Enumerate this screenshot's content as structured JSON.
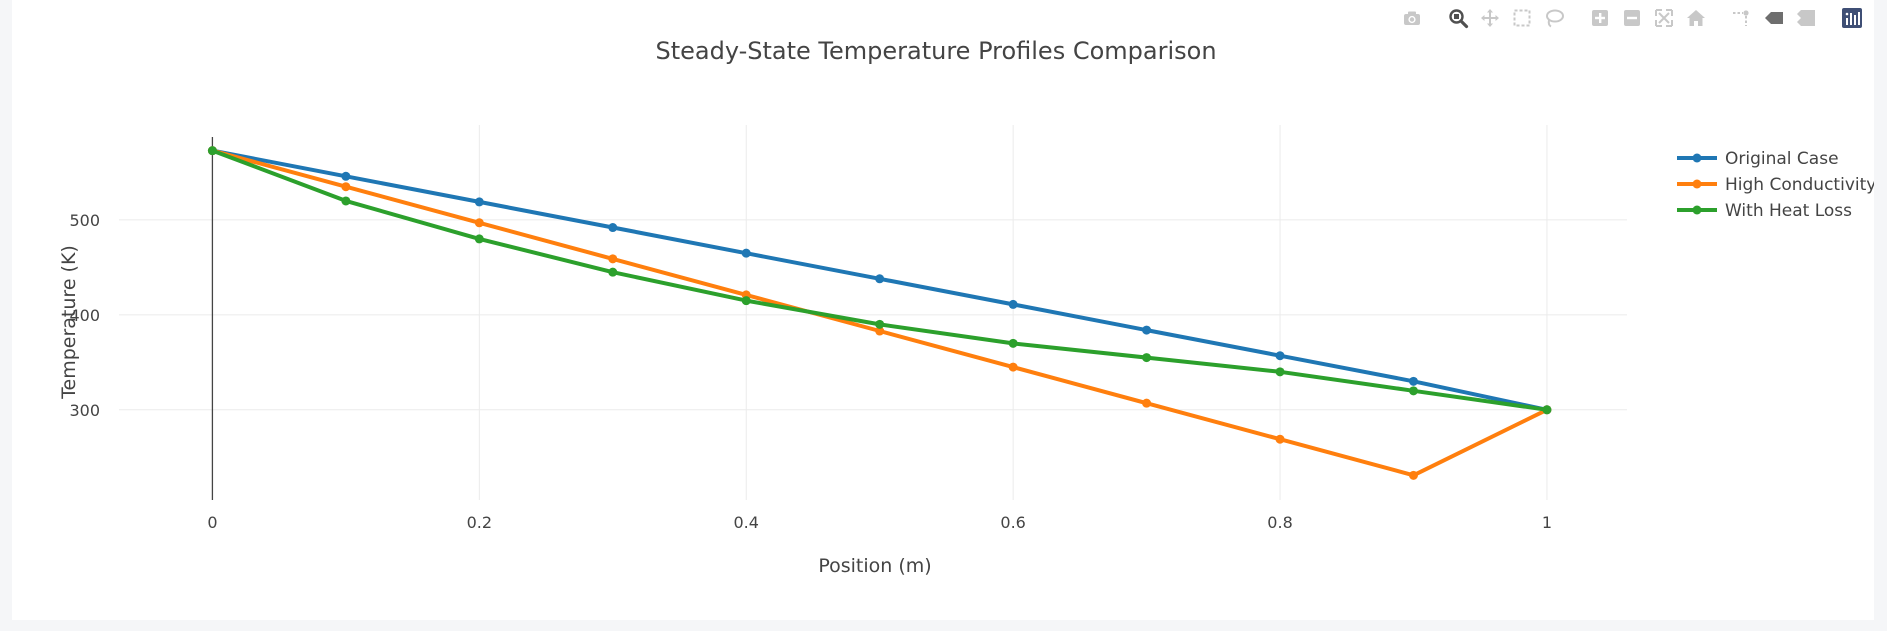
{
  "modebar": {
    "icons": [
      {
        "name": "camera-icon",
        "group": 1
      },
      {
        "name": "zoom-icon",
        "group": 2,
        "active": true
      },
      {
        "name": "pan-icon",
        "group": 2
      },
      {
        "name": "box-select-icon",
        "group": 2
      },
      {
        "name": "lasso-select-icon",
        "group": 2
      },
      {
        "name": "zoom-in-icon",
        "group": 3
      },
      {
        "name": "zoom-out-icon",
        "group": 3
      },
      {
        "name": "autoscale-icon",
        "group": 3
      },
      {
        "name": "reset-axes-icon",
        "group": 3
      },
      {
        "name": "spike-lines-icon",
        "group": 4
      },
      {
        "name": "hover-closest-icon",
        "group": 4
      },
      {
        "name": "hover-compare-icon",
        "group": 4
      },
      {
        "name": "plotly-logo-icon",
        "group": 5
      }
    ]
  },
  "chart_data": {
    "type": "line",
    "title": "Steady-State Temperature Profiles Comparison",
    "xlabel": "Position (m)",
    "ylabel": "Temperature (K)",
    "xlim": [
      -0.07,
      1.06
    ],
    "ylim": [
      205,
      600
    ],
    "xticks": [
      0,
      0.2,
      0.4,
      0.6,
      0.8,
      1
    ],
    "xtick_labels": [
      "0",
      "0.2",
      "0.4",
      "0.6",
      "0.8",
      "1"
    ],
    "yticks": [
      300,
      400,
      500
    ],
    "ytick_labels": [
      "300",
      "400",
      "500"
    ],
    "grid": true,
    "legend_position": "top-right",
    "x": [
      0,
      0.1,
      0.2,
      0.3,
      0.4,
      0.5,
      0.6,
      0.7,
      0.8,
      0.9,
      1.0
    ],
    "series": [
      {
        "name": "Original Case",
        "color": "#1f77b4",
        "values": [
          573,
          546,
          519,
          492,
          465,
          438,
          411,
          384,
          357,
          330,
          300
        ]
      },
      {
        "name": "High Conductivity",
        "color": "#ff7f0e",
        "values": [
          573,
          535,
          497,
          459,
          421,
          383,
          345,
          307,
          269,
          231,
          300
        ]
      },
      {
        "name": "With Heat Loss",
        "color": "#2ca02c",
        "values": [
          573,
          520,
          480,
          445,
          415,
          390,
          370,
          355,
          340,
          320,
          300
        ]
      }
    ]
  }
}
